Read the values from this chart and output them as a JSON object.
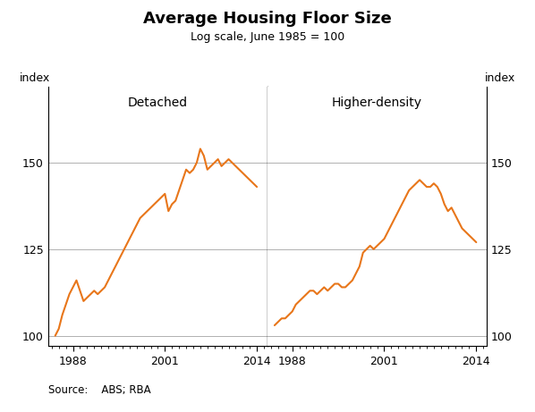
{
  "title": "Average Housing Floor Size",
  "subtitle": "Log scale, June 1985 = 100",
  "left_label": "Detached",
  "right_label": "Higher-density",
  "ylabel": "index",
  "source": "Source:    ABS; RBA",
  "line_color": "#E8761A",
  "yticks": [
    100,
    125,
    150
  ],
  "ylim": [
    97,
    172
  ],
  "xlim": [
    1984.5,
    2015.5
  ],
  "detached_x": [
    1985.5,
    1986,
    1986.5,
    1987,
    1987.5,
    1988,
    1988.5,
    1989,
    1989.5,
    1990,
    1990.5,
    1991,
    1991.5,
    1992,
    1992.5,
    1993,
    1993.5,
    1994,
    1994.5,
    1995,
    1995.5,
    1996,
    1996.5,
    1997,
    1997.5,
    1998,
    1998.5,
    1999,
    1999.5,
    2000,
    2000.5,
    2001,
    2001.5,
    2002,
    2002.5,
    2003,
    2003.5,
    2004,
    2004.5,
    2005,
    2005.5,
    2006,
    2006.5,
    2007,
    2007.5,
    2008,
    2008.5,
    2009,
    2009.5,
    2010,
    2010.5,
    2011,
    2011.5,
    2012,
    2012.5,
    2013,
    2013.5,
    2014
  ],
  "detached_y": [
    100,
    102,
    106,
    109,
    112,
    114,
    116,
    113,
    110,
    111,
    112,
    113,
    112,
    113,
    114,
    116,
    118,
    120,
    122,
    124,
    126,
    128,
    130,
    132,
    134,
    135,
    136,
    137,
    138,
    139,
    140,
    141,
    136,
    138,
    139,
    142,
    145,
    148,
    147,
    148,
    150,
    154,
    152,
    148,
    149,
    150,
    151,
    149,
    150,
    151,
    150,
    149,
    148,
    147,
    146,
    145,
    144,
    143
  ],
  "higher_x": [
    1985.5,
    1986,
    1986.5,
    1987,
    1987.5,
    1988,
    1988.5,
    1989,
    1989.5,
    1990,
    1990.5,
    1991,
    1991.5,
    1992,
    1992.5,
    1993,
    1993.5,
    1994,
    1994.5,
    1995,
    1995.5,
    1996,
    1996.5,
    1997,
    1997.5,
    1998,
    1998.5,
    1999,
    1999.5,
    2000,
    2000.5,
    2001,
    2001.5,
    2002,
    2002.5,
    2003,
    2003.5,
    2004,
    2004.5,
    2005,
    2005.5,
    2006,
    2006.5,
    2007,
    2007.5,
    2008,
    2008.5,
    2009,
    2009.5,
    2010,
    2010.5,
    2011,
    2011.5,
    2012,
    2012.5,
    2013,
    2013.5,
    2014
  ],
  "higher_y": [
    103,
    104,
    105,
    105,
    106,
    107,
    109,
    110,
    111,
    112,
    113,
    113,
    112,
    113,
    114,
    113,
    114,
    115,
    115,
    114,
    114,
    115,
    116,
    118,
    120,
    124,
    125,
    126,
    125,
    126,
    127,
    128,
    130,
    132,
    134,
    136,
    138,
    140,
    142,
    143,
    144,
    145,
    144,
    143,
    143,
    144,
    143,
    141,
    138,
    136,
    137,
    135,
    133,
    131,
    130,
    129,
    128,
    127
  ],
  "background_color": "#ffffff",
  "grid_color": "#b0b0b0",
  "line_width": 1.5,
  "xtick_labels": [
    "1988",
    "2001",
    "2014"
  ],
  "xtick_positions": [
    1988,
    2001,
    2014
  ]
}
